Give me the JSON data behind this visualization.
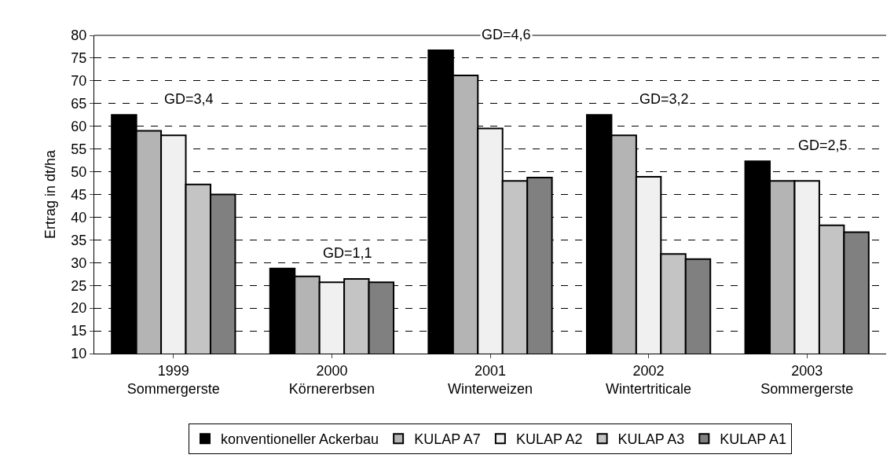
{
  "chart_data": {
    "type": "bar",
    "ylabel": "Ertrag in dt/ha",
    "categories": [
      "1999\nSommergerste",
      "2000\nKörnererbsen",
      "2001\nWinterweizen",
      "2002\nWintertriticale",
      "2003\nSommergerste"
    ],
    "series": [
      {
        "name": "konventioneller Ackerbau",
        "color": "#000000",
        "values": [
          62.5,
          28.7,
          76.7,
          62.5,
          52.3
        ]
      },
      {
        "name": "KULAP A7",
        "color": "#b4b4b4",
        "values": [
          59,
          27,
          71.2,
          58,
          48
        ]
      },
      {
        "name": "KULAP A2",
        "color": "#f0f0f0",
        "values": [
          58,
          25.7,
          59.5,
          48.9,
          48
        ]
      },
      {
        "name": "KULAP A3",
        "color": "#c4c4c4",
        "values": [
          47.2,
          26.4,
          48,
          31.9,
          38.2
        ]
      },
      {
        "name": "KULAP A1",
        "color": "#808080",
        "values": [
          45,
          25.7,
          48.7,
          30.8,
          36.7
        ]
      }
    ],
    "ylim": [
      10,
      80
    ],
    "yticks": [
      10,
      15,
      20,
      25,
      30,
      35,
      40,
      45,
      50,
      55,
      60,
      65,
      70,
      75,
      80
    ],
    "grid": "y",
    "legend": "bottom",
    "annotations": [
      "GD=3,4",
      "GD=1,1",
      "GD=4,6",
      "GD=3,2",
      "GD=2,5"
    ]
  }
}
